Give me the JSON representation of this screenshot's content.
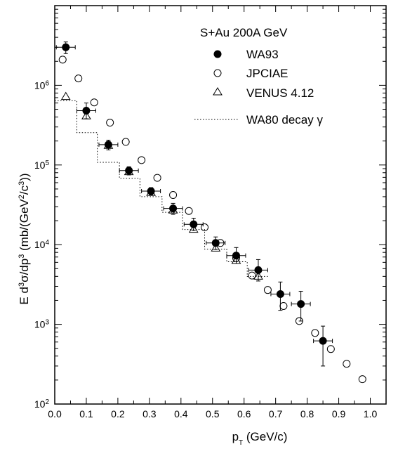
{
  "chart_data": {
    "type": "scatter",
    "x_scale": "linear",
    "y_scale": "log",
    "xlim": [
      0.0,
      1.05
    ],
    "ylim": [
      100,
      10000000
    ],
    "x_ticks": [
      "0.0",
      "0.1",
      "0.2",
      "0.3",
      "0.4",
      "0.5",
      "0.6",
      "0.7",
      "0.8",
      "0.9",
      "1.0"
    ],
    "y_ticks": [
      {
        "base": "10",
        "exp": "2",
        "value": 100
      },
      {
        "base": "10",
        "exp": "3",
        "value": 1000
      },
      {
        "base": "10",
        "exp": "4",
        "value": 10000
      },
      {
        "base": "10",
        "exp": "5",
        "value": 100000
      },
      {
        "base": "10",
        "exp": "6",
        "value": 1000000
      }
    ],
    "xlabel": {
      "p": "p",
      "sub": "T",
      "rest": " (GeV/c)"
    },
    "ylabel": {
      "a": "E d",
      "sup1": "3",
      "b": "σ/dp",
      "sup2": "3",
      "c": "  (mb/(GeV",
      "sup3": "2",
      "d": "/c",
      "sup4": "3",
      "e": "))"
    },
    "legend": {
      "title": "S+Au 200A GeV",
      "position": "top-right",
      "entries": [
        {
          "label": "WA93",
          "marker": "filled-circle"
        },
        {
          "label": "JPCIAE",
          "marker": "open-circle"
        },
        {
          "label": "VENUS 4.12",
          "marker": "open-triangle"
        },
        {
          "label": "WA80 decay γ",
          "marker": "dotted-line"
        }
      ]
    },
    "series": [
      {
        "name": "WA93",
        "marker": "filled-circle",
        "points": [
          {
            "x": 0.035,
            "y": 3000000,
            "xerr": 0.03,
            "ylo": 2500000,
            "yhi": 3500000
          },
          {
            "x": 0.1,
            "y": 480000,
            "xerr": 0.03,
            "ylo": 380000,
            "yhi": 600000
          },
          {
            "x": 0.17,
            "y": 180000,
            "xerr": 0.03,
            "ylo": 155000,
            "yhi": 205000
          },
          {
            "x": 0.235,
            "y": 85000,
            "xerr": 0.03,
            "ylo": 75000,
            "yhi": 95000
          },
          {
            "x": 0.305,
            "y": 47000,
            "xerr": 0.03,
            "ylo": 42000,
            "yhi": 52000
          },
          {
            "x": 0.375,
            "y": 28500,
            "xerr": 0.03,
            "ylo": 24000,
            "yhi": 33000
          },
          {
            "x": 0.44,
            "y": 18000,
            "xerr": 0.03,
            "ylo": 15000,
            "yhi": 21500
          },
          {
            "x": 0.51,
            "y": 10500,
            "xerr": 0.03,
            "ylo": 8700,
            "yhi": 12500
          },
          {
            "x": 0.575,
            "y": 7300,
            "xerr": 0.03,
            "ylo": 5800,
            "yhi": 9200
          },
          {
            "x": 0.645,
            "y": 4800,
            "xerr": 0.03,
            "ylo": 3500,
            "yhi": 6500
          },
          {
            "x": 0.715,
            "y": 2400,
            "xerr": 0.03,
            "ylo": 1500,
            "yhi": 3400
          },
          {
            "x": 0.78,
            "y": 1800,
            "xerr": 0.03,
            "ylo": 1100,
            "yhi": 2600
          },
          {
            "x": 0.85,
            "y": 620,
            "xerr": 0.03,
            "ylo": 300,
            "yhi": 950
          }
        ]
      },
      {
        "name": "JPCIAE",
        "marker": "open-circle",
        "points": [
          {
            "x": 0.025,
            "y": 2100000
          },
          {
            "x": 0.075,
            "y": 1220000
          },
          {
            "x": 0.125,
            "y": 610000
          },
          {
            "x": 0.175,
            "y": 340000
          },
          {
            "x": 0.225,
            "y": 195000
          },
          {
            "x": 0.275,
            "y": 115000
          },
          {
            "x": 0.325,
            "y": 69000
          },
          {
            "x": 0.375,
            "y": 42000
          },
          {
            "x": 0.425,
            "y": 26500
          },
          {
            "x": 0.475,
            "y": 16500
          },
          {
            "x": 0.525,
            "y": 10500
          },
          {
            "x": 0.575,
            "y": 6800
          },
          {
            "x": 0.625,
            "y": 4100
          },
          {
            "x": 0.675,
            "y": 2700
          },
          {
            "x": 0.725,
            "y": 1700
          },
          {
            "x": 0.775,
            "y": 1100
          },
          {
            "x": 0.825,
            "y": 780
          },
          {
            "x": 0.875,
            "y": 490
          },
          {
            "x": 0.925,
            "y": 320
          },
          {
            "x": 0.975,
            "y": 205
          }
        ]
      },
      {
        "name": "VENUS 4.12",
        "marker": "open-triangle",
        "points": [
          {
            "x": 0.035,
            "y": 720000
          },
          {
            "x": 0.1,
            "y": 410000
          },
          {
            "x": 0.17,
            "y": 175000
          },
          {
            "x": 0.235,
            "y": 82000
          },
          {
            "x": 0.305,
            "y": 45000
          },
          {
            "x": 0.375,
            "y": 27000
          },
          {
            "x": 0.44,
            "y": 15500
          },
          {
            "x": 0.51,
            "y": 9000
          },
          {
            "x": 0.575,
            "y": 6300
          },
          {
            "x": 0.645,
            "y": 4000
          }
        ]
      },
      {
        "name": "WA80 decay γ",
        "marker": "dotted-line",
        "steps": [
          {
            "x0": 0.0,
            "x1": 0.07,
            "y": 640000
          },
          {
            "x0": 0.07,
            "x1": 0.135,
            "y": 255000
          },
          {
            "x0": 0.135,
            "x1": 0.205,
            "y": 108000
          },
          {
            "x0": 0.205,
            "x1": 0.27,
            "y": 68000
          },
          {
            "x0": 0.27,
            "x1": 0.34,
            "y": 40000
          },
          {
            "x0": 0.34,
            "x1": 0.405,
            "y": 25500
          },
          {
            "x0": 0.405,
            "x1": 0.475,
            "y": 15500
          },
          {
            "x0": 0.475,
            "x1": 0.545,
            "y": 8800
          },
          {
            "x0": 0.545,
            "x1": 0.61,
            "y": 6100
          },
          {
            "x0": 0.61,
            "x1": 0.675,
            "y": 4000
          }
        ]
      }
    ]
  }
}
